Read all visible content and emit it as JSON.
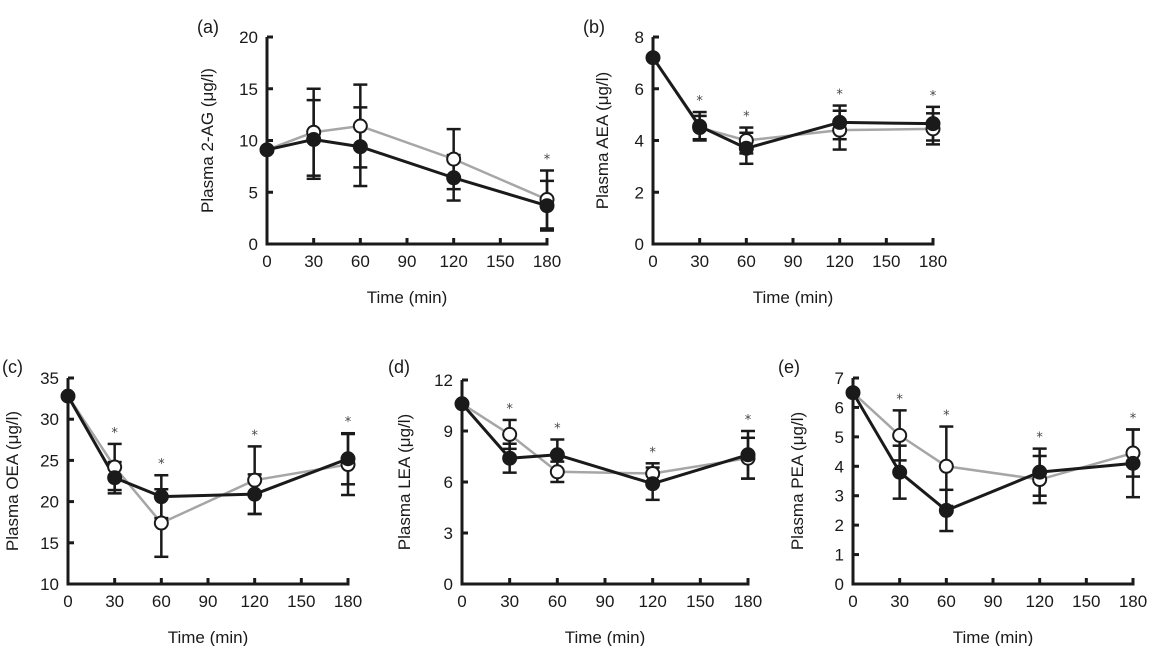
{
  "figure": {
    "legend": {
      "filled": "filled circles (black line)",
      "open": "open circles (grey line)"
    },
    "colors": {
      "filled": "#1a1a1a",
      "open": "#a6a6a6",
      "axis": "#1a1a1a"
    }
  },
  "chart_data": [
    {
      "panel": "(a)",
      "type": "line",
      "title": "",
      "xlabel": "Time (min)",
      "ylabel": "Plasma 2-AG (μg/l)",
      "x": [
        0,
        30,
        60,
        120,
        180
      ],
      "xticks": [
        0,
        30,
        60,
        90,
        120,
        150,
        180
      ],
      "yticks": [
        0,
        5,
        10,
        15,
        20
      ],
      "xlim": [
        0,
        180
      ],
      "ylim": [
        0,
        20
      ],
      "series": [
        {
          "name": "open",
          "values": [
            9.1,
            10.8,
            11.4,
            8.2,
            4.3
          ],
          "err": [
            0,
            4.2,
            4.0,
            2.9,
            2.8
          ]
        },
        {
          "name": "filled",
          "values": [
            9.1,
            10.1,
            9.4,
            6.4,
            3.7
          ],
          "err": [
            0,
            3.8,
            3.8,
            2.2,
            2.4
          ]
        }
      ],
      "significance": [
        false,
        false,
        false,
        false,
        true
      ],
      "grid": false
    },
    {
      "panel": "(b)",
      "type": "line",
      "title": "",
      "xlabel": "Time (min)",
      "ylabel": "Plasma AEA (μg/l)",
      "x": [
        0,
        30,
        60,
        120,
        180
      ],
      "xticks": [
        0,
        30,
        60,
        90,
        120,
        150,
        180
      ],
      "yticks": [
        0,
        2,
        4,
        6,
        8
      ],
      "xlim": [
        0,
        180
      ],
      "ylim": [
        0,
        8
      ],
      "series": [
        {
          "name": "open",
          "values": [
            7.2,
            4.5,
            4.0,
            4.4,
            4.45
          ],
          "err": [
            0,
            0.45,
            0.5,
            0.75,
            0.6
          ]
        },
        {
          "name": "filled",
          "values": [
            7.2,
            4.55,
            3.7,
            4.7,
            4.65
          ],
          "err": [
            0,
            0.55,
            0.6,
            0.65,
            0.65
          ]
        }
      ],
      "significance": [
        false,
        true,
        true,
        true,
        true
      ],
      "grid": false
    },
    {
      "panel": "(c)",
      "type": "line",
      "title": "",
      "xlabel": "Time (min)",
      "ylabel": "Plasma OEA (μg/l)",
      "x": [
        0,
        30,
        60,
        120,
        180
      ],
      "xticks": [
        0,
        30,
        60,
        90,
        120,
        150,
        180
      ],
      "yticks": [
        10,
        15,
        20,
        25,
        30,
        35
      ],
      "xlim": [
        0,
        180
      ],
      "ylim": [
        10,
        35
      ],
      "series": [
        {
          "name": "open",
          "values": [
            32.8,
            24.2,
            17.4,
            22.6,
            24.5
          ],
          "err": [
            0,
            2.8,
            4.1,
            4.1,
            3.7
          ]
        },
        {
          "name": "filled",
          "values": [
            32.8,
            22.9,
            20.6,
            20.9,
            25.2
          ],
          "err": [
            0,
            1.9,
            2.6,
            2.4,
            3.1
          ]
        }
      ],
      "significance": [
        false,
        true,
        true,
        true,
        true
      ],
      "grid": false
    },
    {
      "panel": "(d)",
      "type": "line",
      "title": "",
      "xlabel": "Time (min)",
      "ylabel": "Plasma LEA (μg/l)",
      "x": [
        0,
        30,
        60,
        120,
        180
      ],
      "xticks": [
        0,
        30,
        60,
        90,
        120,
        150,
        180
      ],
      "yticks": [
        0,
        3,
        6,
        9,
        12
      ],
      "xlim": [
        0,
        180
      ],
      "ylim": [
        0,
        12
      ],
      "series": [
        {
          "name": "open",
          "values": [
            10.6,
            8.8,
            6.6,
            6.5,
            7.4
          ],
          "err": [
            0,
            0.85,
            0.6,
            0.6,
            1.2
          ]
        },
        {
          "name": "filled",
          "values": [
            10.6,
            7.4,
            7.6,
            5.9,
            7.6
          ],
          "err": [
            0,
            0.85,
            0.9,
            0.95,
            1.4
          ]
        }
      ],
      "significance": [
        false,
        true,
        true,
        true,
        true
      ],
      "grid": false
    },
    {
      "panel": "(e)",
      "type": "line",
      "title": "",
      "xlabel": "Time (min)",
      "ylabel": "Plasma PEA (μg/l)",
      "x": [
        0,
        30,
        60,
        120,
        180
      ],
      "xticks": [
        0,
        30,
        60,
        90,
        120,
        150,
        180
      ],
      "yticks": [
        0,
        1,
        2,
        3,
        4,
        5,
        6,
        7
      ],
      "xlim": [
        0,
        180
      ],
      "ylim": [
        0,
        7
      ],
      "series": [
        {
          "name": "open",
          "values": [
            6.5,
            5.05,
            4.0,
            3.55,
            4.45
          ],
          "err": [
            0,
            0.85,
            1.35,
            0.8,
            0.8
          ]
        },
        {
          "name": "filled",
          "values": [
            6.5,
            3.8,
            2.5,
            3.8,
            4.1
          ],
          "err": [
            0,
            0.9,
            0.7,
            0.8,
            1.15
          ]
        }
      ],
      "significance": [
        false,
        true,
        true,
        true,
        true
      ],
      "grid": false
    }
  ]
}
